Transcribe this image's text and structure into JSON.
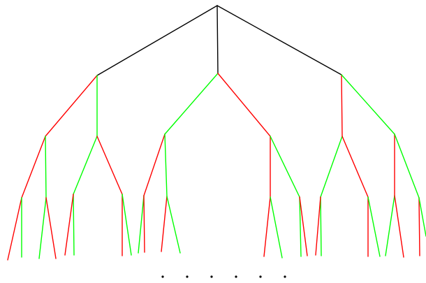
{
  "colors": {
    "root": "#000000",
    "red": "#ff0000",
    "green": "#00ff00",
    "ellipsis": "#000000"
  },
  "tree": {
    "root_children": 3,
    "levels_shown": 4,
    "edge_color_sequence": [
      [
        "black",
        "black",
        "black"
      ],
      [
        "red",
        "green",
        "green",
        "red",
        "red",
        "green"
      ],
      [
        "red",
        "green",
        "green",
        "red",
        "red",
        "green",
        "red",
        "green",
        "green",
        "red",
        "red",
        "green"
      ],
      [
        "red",
        "green",
        "green",
        "red",
        "green",
        "red",
        "red",
        "green",
        "green",
        "red",
        "red",
        "green",
        "red",
        "green",
        "green",
        "red",
        "green",
        "red",
        "red",
        "green",
        "green",
        "red",
        "red",
        "green"
      ]
    ]
  },
  "continuation": {
    "dot_count": 6
  }
}
